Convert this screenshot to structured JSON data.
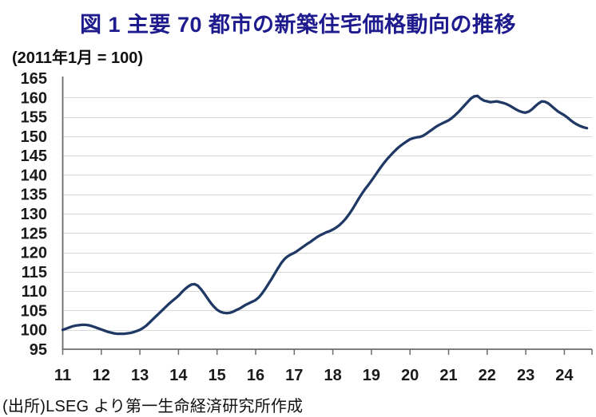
{
  "figure": {
    "title": "図 1  主要 70 都市の新築住宅価格動向の推移",
    "unit_note": "(2011年1月 = 100)",
    "source_note": "(出所)LSEG より第一生命経済研究所作成"
  },
  "colors": {
    "title_text": "#1e1b8e",
    "series_line": "#1f3864",
    "axis_line": "#6b6b6b",
    "gridline": "#d9d9d9",
    "tick_label": "#1a1a1a"
  },
  "chart_data": {
    "type": "line",
    "title": "図 1  主要 70 都市の新築住宅価格動向の推移",
    "xlabel": "",
    "ylabel": "(2011年1月 = 100)",
    "ylim": [
      95,
      165
    ],
    "y_tick_labels": [
      "165",
      "160",
      "155",
      "150",
      "145",
      "140",
      "135",
      "130",
      "125",
      "120",
      "115",
      "110",
      "105",
      "100",
      "95"
    ],
    "x_tick_labels": [
      "11",
      "12",
      "13",
      "14",
      "15",
      "16",
      "17",
      "18",
      "19",
      "20",
      "21",
      "22",
      "23",
      "24"
    ],
    "x_start": "2011-01",
    "frequency": "monthly",
    "grid": true,
    "legend": "none",
    "series": [
      {
        "name": "主要70都市 新築住宅価格指数 (2011年1月=100)",
        "values": [
          100.0,
          100.3,
          100.6,
          100.9,
          101.1,
          101.2,
          101.3,
          101.3,
          101.2,
          101.0,
          100.7,
          100.4,
          100.1,
          99.8,
          99.5,
          99.3,
          99.1,
          99.0,
          99.0,
          99.0,
          99.1,
          99.2,
          99.4,
          99.7,
          100.0,
          100.5,
          101.1,
          101.9,
          102.7,
          103.5,
          104.3,
          105.1,
          105.9,
          106.7,
          107.4,
          108.1,
          108.8,
          109.7,
          110.5,
          111.2,
          111.7,
          111.8,
          111.4,
          110.5,
          109.4,
          108.2,
          107.0,
          106.0,
          105.2,
          104.7,
          104.4,
          104.3,
          104.4,
          104.7,
          105.1,
          105.5,
          106.0,
          106.5,
          106.9,
          107.3,
          107.7,
          108.4,
          109.4,
          110.6,
          111.9,
          113.2,
          114.6,
          116.0,
          117.3,
          118.3,
          119.0,
          119.5,
          119.9,
          120.4,
          121.0,
          121.6,
          122.2,
          122.7,
          123.3,
          123.9,
          124.4,
          124.8,
          125.2,
          125.5,
          125.9,
          126.4,
          127.0,
          127.8,
          128.7,
          129.8,
          131.0,
          132.4,
          133.8,
          135.1,
          136.3,
          137.4,
          138.5,
          139.7,
          140.9,
          142.1,
          143.2,
          144.2,
          145.1,
          146.0,
          146.8,
          147.5,
          148.1,
          148.7,
          149.2,
          149.5,
          149.7,
          149.8,
          150.1,
          150.6,
          151.2,
          151.8,
          152.4,
          152.9,
          153.3,
          153.7,
          154.1,
          154.7,
          155.4,
          156.2,
          157.1,
          158.0,
          158.9,
          159.8,
          160.3,
          160.4,
          159.7,
          159.2,
          159.0,
          158.8,
          158.9,
          159.0,
          158.8,
          158.6,
          158.3,
          157.9,
          157.4,
          156.9,
          156.5,
          156.2,
          156.1,
          156.4,
          157.0,
          157.8,
          158.5,
          159.0,
          158.9,
          158.5,
          157.8,
          157.1,
          156.4,
          155.9,
          155.4,
          154.8,
          154.1,
          153.5,
          153.0,
          152.6,
          152.3,
          152.1
        ]
      }
    ]
  }
}
